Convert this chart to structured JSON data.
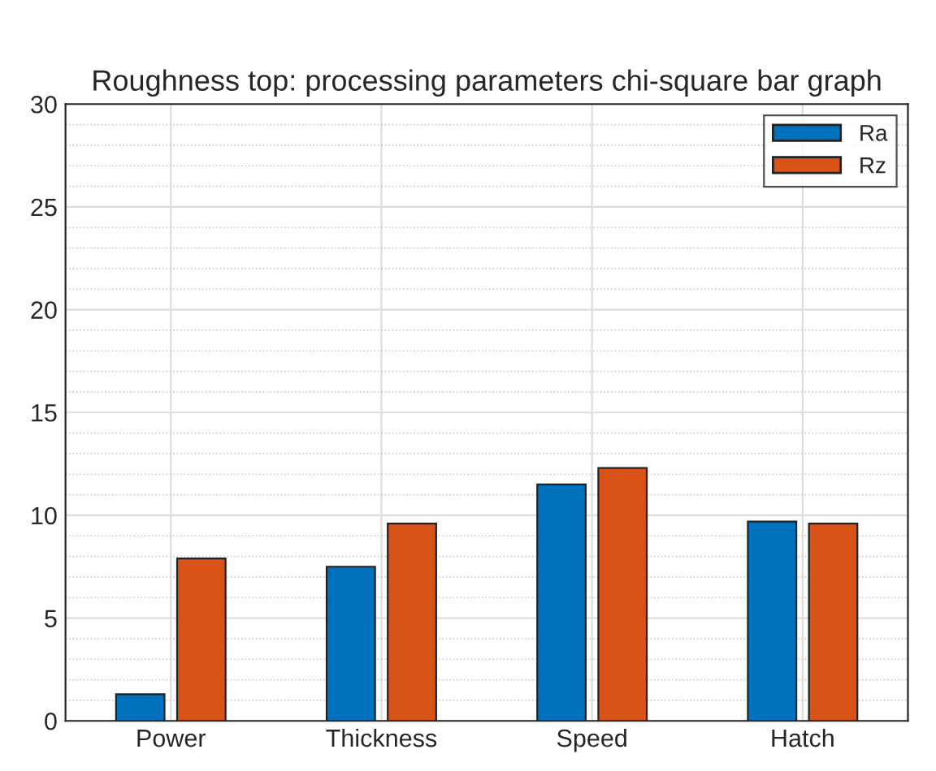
{
  "chart_data": {
    "type": "bar",
    "title": "Roughness top: processing parameters chi-square bar graph",
    "categories": [
      "Power",
      "Thickness",
      "Speed",
      "Hatch"
    ],
    "series": [
      {
        "name": "Ra",
        "color": "#0072bd",
        "values": [
          1.3,
          7.5,
          11.5,
          9.7
        ]
      },
      {
        "name": "Rz",
        "color": "#d95319",
        "values": [
          7.9,
          9.6,
          12.3,
          9.6
        ]
      }
    ],
    "ylim": [
      0,
      30
    ],
    "yticks": [
      0,
      5,
      10,
      15,
      20,
      25,
      30
    ],
    "grid": true,
    "legend": "top right"
  }
}
